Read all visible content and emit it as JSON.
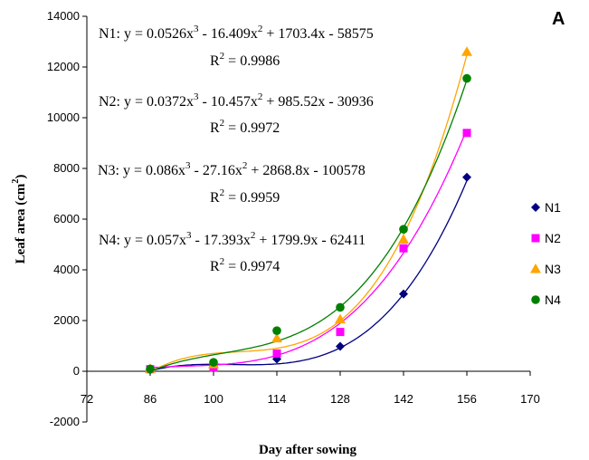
{
  "chart_data": {
    "type": "scatter",
    "panel_label": "A",
    "xlabel": "Day after sowing",
    "ylabel": {
      "main": "Leaf area (cm",
      "sup": "2",
      "end": ")"
    },
    "xlim": [
      72,
      170
    ],
    "ylim": [
      -2000,
      14000
    ],
    "xticks": [
      72,
      86,
      100,
      114,
      128,
      142,
      156,
      170
    ],
    "yticks": [
      -2000,
      0,
      2000,
      4000,
      6000,
      8000,
      10000,
      12000,
      14000
    ],
    "x": [
      86,
      100,
      114,
      128,
      142,
      156
    ],
    "series": [
      {
        "name": "N1",
        "color": "#000080",
        "marker": "diamond",
        "values": [
          60,
          200,
          480,
          980,
          3050,
          7650
        ],
        "coeffs": [
          0.0526,
          -16.409,
          1703.4,
          -58575
        ],
        "equation": {
          "lead": "N1: y = 0.0526x",
          "sup1": "3",
          "mid": " - 16.409x",
          "sup2": "2",
          "tail": " + 1703.4x - 58575",
          "r2_lead": "R",
          "r2_sup": "2",
          "r2_tail": " = 0.9986"
        }
      },
      {
        "name": "N2",
        "color": "#ff00ff",
        "marker": "square",
        "values": [
          80,
          150,
          700,
          1550,
          4850,
          9400
        ],
        "coeffs": [
          0.0372,
          -10.457,
          985.52,
          -30936
        ],
        "equation": {
          "lead": "N2: y = 0.0372x",
          "sup1": "3",
          "mid": " - 10.457x",
          "sup2": "2",
          "tail": " + 985.52x - 30936",
          "r2_lead": "R",
          "r2_sup": "2",
          "r2_tail": " = 0.9972"
        }
      },
      {
        "name": "N3",
        "color": "#ffa500",
        "marker": "triangle",
        "values": [
          100,
          280,
          1300,
          2050,
          5200,
          12600
        ],
        "coeffs": [
          0.086,
          -27.16,
          2868.8,
          -100578
        ],
        "equation": {
          "lead": "N3: y = 0.086x",
          "sup1": "3",
          "mid": " - 27.16x",
          "sup2": "2",
          "tail": " + 2868.8x - 100578",
          "r2_lead": "R",
          "r2_sup": "2",
          "r2_tail": " = 0.9959"
        }
      },
      {
        "name": "N4",
        "color": "#008000",
        "marker": "circle",
        "values": [
          90,
          350,
          1600,
          2520,
          5600,
          11550
        ],
        "coeffs": [
          0.057,
          -17.393,
          1799.9,
          -62411
        ],
        "equation": {
          "lead": "N4: y = 0.057x",
          "sup1": "3",
          "mid": " - 17.393x",
          "sup2": "2",
          "tail": " + 1799.9x - 62411",
          "r2_lead": "R",
          "r2_sup": "2",
          "r2_tail": " = 0.9974"
        }
      }
    ],
    "trendline": "polynomial-order-3",
    "grid": false,
    "legend_position": "right"
  }
}
